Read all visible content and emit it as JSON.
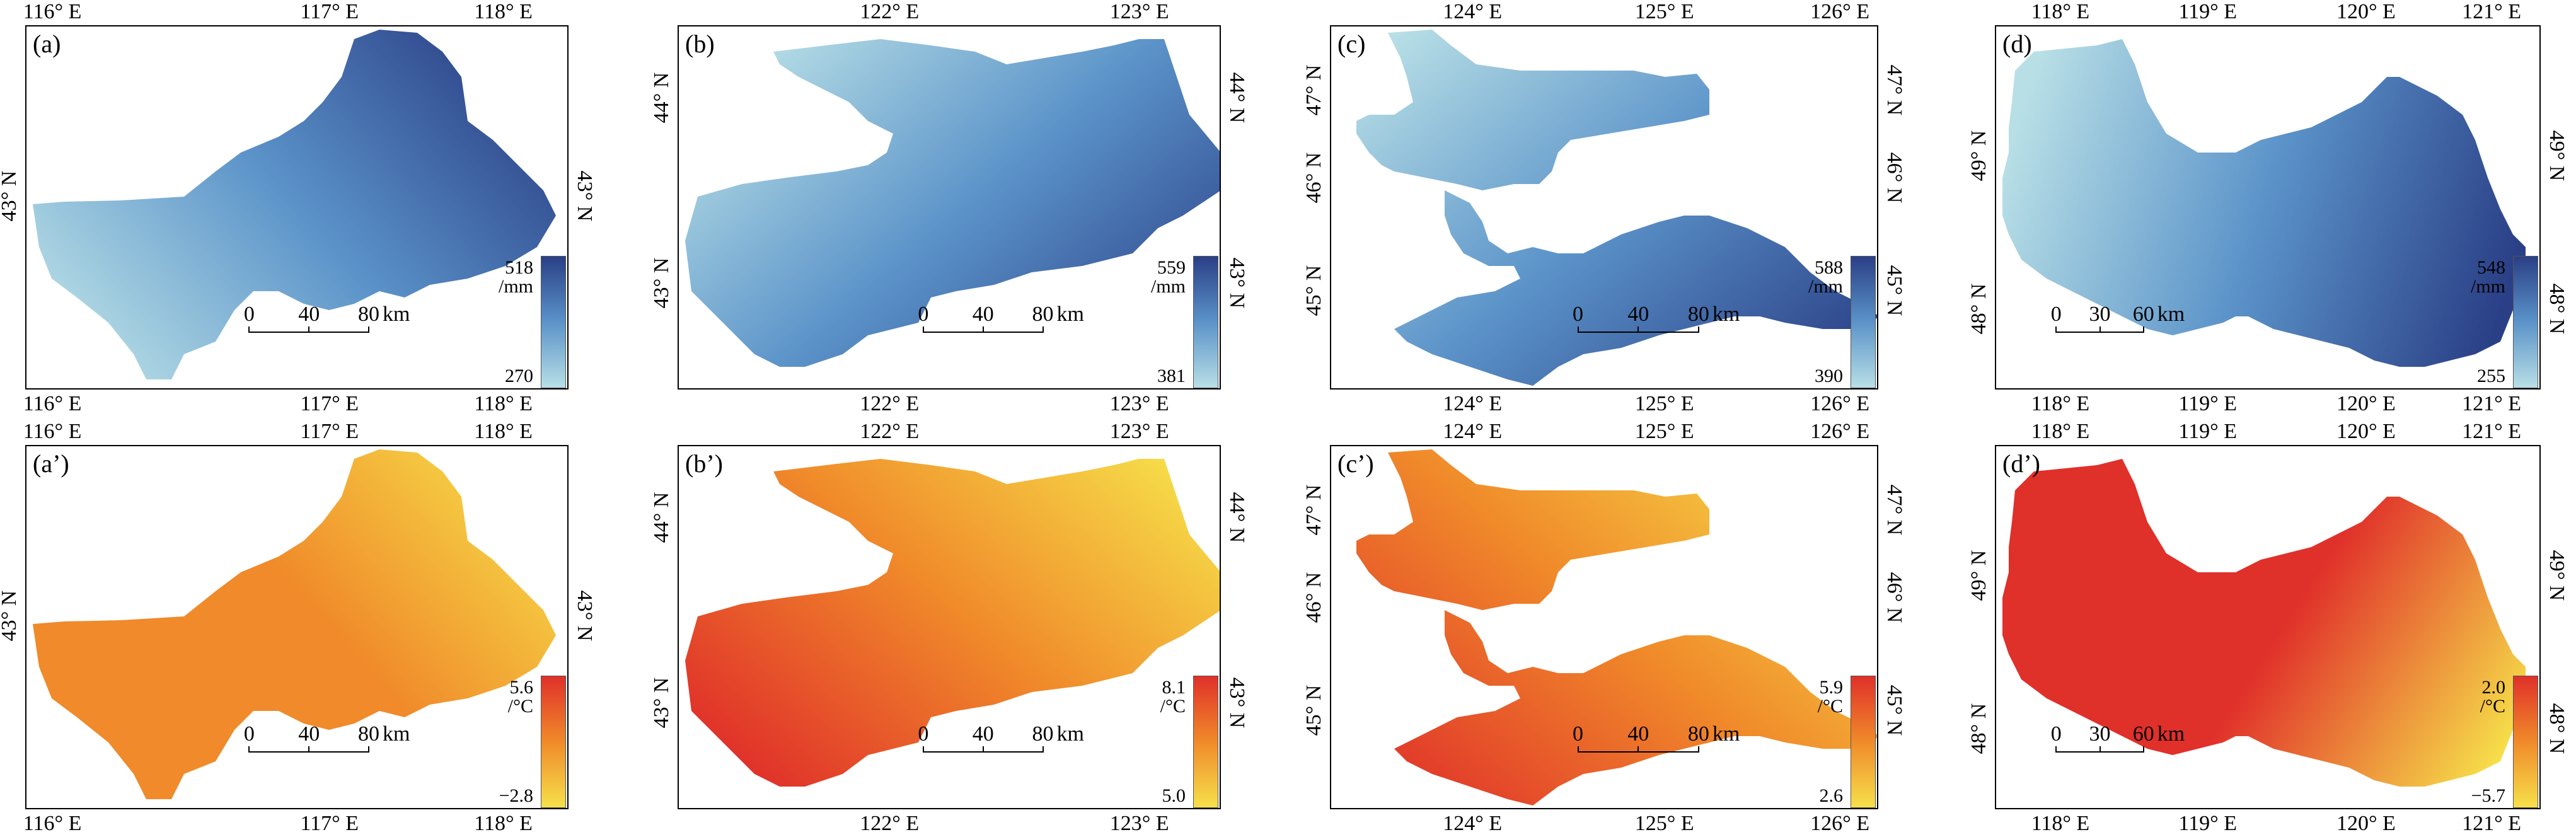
{
  "panels": [
    {
      "id": "a",
      "label": "(a)",
      "top_ticks": [
        "116° E",
        "117° E",
        "118° E"
      ],
      "bottom_ticks": [
        "116° E",
        "117° E",
        "118° E"
      ],
      "left_ticks": [
        "43° N"
      ],
      "right_ticks": [
        "43° N"
      ],
      "cb_max": "518",
      "cb_unit": "/mm",
      "cb_min": "270",
      "scale": {
        "labels": [
          "0",
          "40",
          "80"
        ],
        "unit": "km"
      },
      "cmap": "precip"
    },
    {
      "id": "b",
      "label": "(b)",
      "top_ticks": [
        "122° E",
        "123° E"
      ],
      "bottom_ticks": [
        "122° E",
        "123° E"
      ],
      "left_ticks": [
        "44° N",
        "43° N"
      ],
      "right_ticks": [
        "44° N",
        "43° N"
      ],
      "cb_max": "559",
      "cb_unit": "/mm",
      "cb_min": "381",
      "scale": {
        "labels": [
          "0",
          "40",
          "80"
        ],
        "unit": "km"
      },
      "cmap": "precip"
    },
    {
      "id": "c",
      "label": "(c)",
      "top_ticks": [
        "124° E",
        "125° E",
        "126° E"
      ],
      "bottom_ticks": [
        "124° E",
        "125° E",
        "126° E"
      ],
      "left_ticks": [
        "47° N",
        "46° N",
        "45° N"
      ],
      "right_ticks": [
        "47° N",
        "46° N",
        "45° N"
      ],
      "cb_max": "588",
      "cb_unit": "/mm",
      "cb_min": "390",
      "scale": {
        "labels": [
          "0",
          "40",
          "80"
        ],
        "unit": "km"
      },
      "cmap": "precip"
    },
    {
      "id": "d",
      "label": "(d)",
      "top_ticks": [
        "118° E",
        "119° E",
        "120° E",
        "121° E"
      ],
      "bottom_ticks": [
        "118° E",
        "119° E",
        "120° E",
        "121° E"
      ],
      "left_ticks": [
        "49° N",
        "48° N"
      ],
      "right_ticks": [
        "49° N",
        "48° N"
      ],
      "cb_max": "548",
      "cb_unit": "/mm",
      "cb_min": "255",
      "scale": {
        "labels": [
          "0",
          "30",
          "60"
        ],
        "unit": "km"
      },
      "cmap": "precip"
    },
    {
      "id": "a2",
      "label": "(a’)",
      "top_ticks": [
        "116° E",
        "117° E",
        "118° E"
      ],
      "bottom_ticks": [
        "116° E",
        "117° E",
        "118° E"
      ],
      "left_ticks": [
        "43° N"
      ],
      "right_ticks": [
        "43° N"
      ],
      "cb_max": "5.6",
      "cb_unit": "/°C",
      "cb_min": "−2.8",
      "scale": {
        "labels": [
          "0",
          "40",
          "80"
        ],
        "unit": "km"
      },
      "cmap": "temp"
    },
    {
      "id": "b2",
      "label": "(b’)",
      "top_ticks": [
        "122° E",
        "123° E"
      ],
      "bottom_ticks": [
        "122° E",
        "123° E"
      ],
      "left_ticks": [
        "44° N",
        "43° N"
      ],
      "right_ticks": [
        "44° N",
        "43° N"
      ],
      "cb_max": "8.1",
      "cb_unit": "/°C",
      "cb_min": "5.0",
      "scale": {
        "labels": [
          "0",
          "40",
          "80"
        ],
        "unit": "km"
      },
      "cmap": "temp"
    },
    {
      "id": "c2",
      "label": "(c’)",
      "top_ticks": [
        "124° E",
        "125° E",
        "126° E"
      ],
      "bottom_ticks": [
        "124° E",
        "125° E",
        "126° E"
      ],
      "left_ticks": [
        "47° N",
        "46° N",
        "45° N"
      ],
      "right_ticks": [
        "47° N",
        "46° N",
        "45° N"
      ],
      "cb_max": "5.9",
      "cb_unit": "/°C",
      "cb_min": "2.6",
      "scale": {
        "labels": [
          "0",
          "40",
          "80"
        ],
        "unit": "km"
      },
      "cmap": "temp"
    },
    {
      "id": "d2",
      "label": "(d’)",
      "top_ticks": [
        "118° E",
        "119° E",
        "120° E",
        "121° E"
      ],
      "bottom_ticks": [
        "118° E",
        "119° E",
        "120° E",
        "121° E"
      ],
      "left_ticks": [
        "49° N",
        "48° N"
      ],
      "right_ticks": [
        "49° N",
        "48° N"
      ],
      "cb_max": "2.0",
      "cb_unit": "/°C",
      "cb_min": "−5.7",
      "scale": {
        "labels": [
          "0",
          "30",
          "60"
        ],
        "unit": "km"
      },
      "cmap": "temp"
    }
  ],
  "colors": {
    "precip_low": "#b8dfe6",
    "precip_mid": "#5b93c9",
    "precip_high": "#2a3f86",
    "temp_low": "#f6e04a",
    "temp_mid": "#f08a2a",
    "temp_high": "#e0302a"
  }
}
